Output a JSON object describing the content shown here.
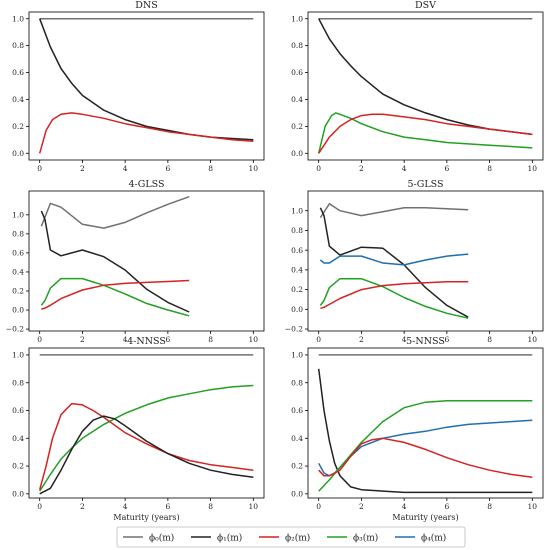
{
  "legend": [
    {
      "label": "ϕ₀(m)",
      "color": "#707070"
    },
    {
      "label": "ϕ₁(m)",
      "color": "#222222"
    },
    {
      "label": "ϕ₂(m)",
      "color": "#d62222"
    },
    {
      "label": "ϕ₃(m)",
      "color": "#22a022"
    },
    {
      "label": "ϕ₄(m)",
      "color": "#1f6fb0"
    }
  ],
  "chart_data": [
    {
      "type": "line",
      "title": "DNS",
      "xlabel": "",
      "xlim": [
        -0.5,
        10.5
      ],
      "ylim": [
        -0.05,
        1.05
      ],
      "xticks": [
        0,
        2,
        4,
        6,
        8,
        10
      ],
      "yticks": [
        0.0,
        0.2,
        0.4,
        0.6,
        0.8,
        1.0
      ],
      "series": [
        {
          "color": "#707070",
          "x": [
            0,
            10
          ],
          "y": [
            1.0,
            1.0
          ]
        },
        {
          "color": "#222222",
          "x": [
            0,
            0.5,
            1,
            1.5,
            2,
            3,
            4,
            5,
            6,
            7,
            8,
            9,
            10
          ],
          "y": [
            1.0,
            0.79,
            0.63,
            0.52,
            0.43,
            0.32,
            0.25,
            0.2,
            0.17,
            0.14,
            0.12,
            0.11,
            0.1
          ]
        },
        {
          "color": "#d62222",
          "x": [
            0,
            0.3,
            0.6,
            1,
            1.5,
            2,
            3,
            4,
            5,
            6,
            7,
            8,
            9,
            10
          ],
          "y": [
            0.0,
            0.17,
            0.25,
            0.29,
            0.3,
            0.29,
            0.26,
            0.22,
            0.19,
            0.16,
            0.14,
            0.12,
            0.1,
            0.09
          ]
        }
      ]
    },
    {
      "type": "line",
      "title": "DSV",
      "xlabel": "",
      "xlim": [
        -0.5,
        10.5
      ],
      "ylim": [
        -0.05,
        1.05
      ],
      "xticks": [
        0,
        2,
        4,
        6,
        8,
        10
      ],
      "yticks": [
        0.0,
        0.2,
        0.4,
        0.6,
        0.8,
        1.0
      ],
      "series": [
        {
          "color": "#707070",
          "x": [
            0,
            10
          ],
          "y": [
            1.0,
            1.0
          ]
        },
        {
          "color": "#222222",
          "x": [
            0,
            0.5,
            1,
            1.5,
            2,
            3,
            4,
            5,
            6,
            7,
            8,
            9,
            10
          ],
          "y": [
            1.0,
            0.85,
            0.74,
            0.65,
            0.57,
            0.44,
            0.36,
            0.3,
            0.25,
            0.21,
            0.18,
            0.16,
            0.14
          ]
        },
        {
          "color": "#22a022",
          "x": [
            0,
            0.3,
            0.6,
            0.8,
            1,
            1.5,
            2,
            3,
            4,
            5,
            6,
            7,
            8,
            9,
            10
          ],
          "y": [
            0.0,
            0.2,
            0.28,
            0.3,
            0.29,
            0.26,
            0.22,
            0.16,
            0.12,
            0.1,
            0.08,
            0.07,
            0.06,
            0.05,
            0.04
          ]
        },
        {
          "color": "#d62222",
          "x": [
            0,
            0.5,
            1,
            1.5,
            2,
            2.5,
            3,
            4,
            5,
            6,
            7,
            8,
            9,
            10
          ],
          "y": [
            0.0,
            0.12,
            0.2,
            0.25,
            0.28,
            0.29,
            0.29,
            0.27,
            0.25,
            0.22,
            0.2,
            0.18,
            0.16,
            0.14
          ]
        }
      ]
    },
    {
      "type": "line",
      "title": "4-GLSS",
      "xlabel": "",
      "xlim": [
        -0.5,
        10.5
      ],
      "ylim": [
        -0.22,
        1.25
      ],
      "xticks": [
        0,
        2,
        4,
        6,
        8,
        10
      ],
      "yticks": [
        -0.2,
        0.0,
        0.2,
        0.4,
        0.6,
        0.8,
        1.0
      ],
      "series": [
        {
          "color": "#707070",
          "x": [
            0.08,
            0.5,
            1,
            2,
            3,
            4,
            5,
            6,
            7
          ],
          "y": [
            0.88,
            1.12,
            1.08,
            0.9,
            0.86,
            0.92,
            1.02,
            1.11,
            1.19
          ]
        },
        {
          "color": "#222222",
          "x": [
            0.08,
            0.25,
            0.5,
            1,
            2,
            3,
            4,
            5,
            6,
            7
          ],
          "y": [
            1.04,
            0.95,
            0.63,
            0.57,
            0.63,
            0.56,
            0.42,
            0.22,
            0.08,
            -0.02
          ]
        },
        {
          "color": "#22a022",
          "x": [
            0.08,
            0.25,
            0.5,
            1,
            2,
            3,
            4,
            5,
            6,
            7
          ],
          "y": [
            0.05,
            0.1,
            0.23,
            0.33,
            0.33,
            0.26,
            0.17,
            0.07,
            0.0,
            -0.06
          ]
        },
        {
          "color": "#d62222",
          "x": [
            0.08,
            0.25,
            0.5,
            1,
            2,
            3,
            4,
            5,
            6,
            7
          ],
          "y": [
            0.01,
            0.02,
            0.05,
            0.12,
            0.21,
            0.26,
            0.28,
            0.29,
            0.3,
            0.31
          ]
        }
      ]
    },
    {
      "type": "line",
      "title": "5-GLSS",
      "xlabel": "",
      "xlim": [
        -0.5,
        10.5
      ],
      "ylim": [
        -0.22,
        1.2
      ],
      "xticks": [
        0,
        2,
        4,
        6,
        8,
        10
      ],
      "yticks": [
        -0.2,
        0.0,
        0.2,
        0.4,
        0.6,
        0.8,
        1.0
      ],
      "series": [
        {
          "color": "#707070",
          "x": [
            0.08,
            0.5,
            1,
            2,
            3,
            4,
            5,
            6,
            7
          ],
          "y": [
            0.93,
            1.07,
            1.0,
            0.95,
            0.99,
            1.03,
            1.03,
            1.02,
            1.01
          ]
        },
        {
          "color": "#222222",
          "x": [
            0.08,
            0.25,
            0.5,
            1,
            2,
            3,
            4,
            5,
            6,
            7
          ],
          "y": [
            1.03,
            0.95,
            0.64,
            0.55,
            0.63,
            0.62,
            0.45,
            0.22,
            0.04,
            -0.08
          ]
        },
        {
          "color": "#1f6fb0",
          "x": [
            0.08,
            0.25,
            0.5,
            1,
            2,
            3,
            4,
            5,
            6,
            7
          ],
          "y": [
            0.5,
            0.47,
            0.47,
            0.54,
            0.54,
            0.47,
            0.45,
            0.5,
            0.54,
            0.56
          ]
        },
        {
          "color": "#22a022",
          "x": [
            0.08,
            0.25,
            0.5,
            1,
            2,
            3,
            4,
            5,
            6,
            7
          ],
          "y": [
            0.04,
            0.09,
            0.22,
            0.31,
            0.31,
            0.23,
            0.12,
            0.03,
            -0.04,
            -0.09
          ]
        },
        {
          "color": "#d62222",
          "x": [
            0.08,
            0.25,
            0.5,
            1,
            2,
            3,
            4,
            5,
            6,
            7
          ],
          "y": [
            0.01,
            0.02,
            0.05,
            0.11,
            0.2,
            0.24,
            0.26,
            0.27,
            0.28,
            0.28
          ]
        }
      ]
    },
    {
      "type": "line",
      "title": "4-NNSS",
      "xlabel": "Maturity (years)",
      "xlim": [
        -0.5,
        10.5
      ],
      "ylim": [
        -0.03,
        1.05
      ],
      "xticks": [
        0,
        2,
        4,
        6,
        8,
        10
      ],
      "yticks": [
        0.0,
        0.2,
        0.4,
        0.6,
        0.8,
        1.0
      ],
      "series": [
        {
          "color": "#707070",
          "x": [
            0,
            10
          ],
          "y": [
            1.0,
            1.0
          ]
        },
        {
          "color": "#22a022",
          "x": [
            0,
            0.5,
            1,
            1.5,
            2,
            3,
            4,
            5,
            6,
            7,
            8,
            9,
            10
          ],
          "y": [
            0.02,
            0.14,
            0.25,
            0.33,
            0.4,
            0.5,
            0.58,
            0.64,
            0.69,
            0.72,
            0.75,
            0.77,
            0.78
          ]
        },
        {
          "color": "#d62222",
          "x": [
            0,
            0.3,
            0.6,
            1,
            1.5,
            2,
            2.5,
            3,
            4,
            5,
            6,
            7,
            8,
            9,
            10
          ],
          "y": [
            0.03,
            0.2,
            0.4,
            0.57,
            0.65,
            0.64,
            0.6,
            0.55,
            0.44,
            0.36,
            0.29,
            0.24,
            0.21,
            0.19,
            0.17
          ]
        },
        {
          "color": "#222222",
          "x": [
            0,
            0.5,
            1,
            1.5,
            2,
            2.5,
            3,
            3.5,
            4,
            5,
            6,
            7,
            8,
            9,
            10
          ],
          "y": [
            0.0,
            0.04,
            0.17,
            0.32,
            0.45,
            0.53,
            0.56,
            0.54,
            0.49,
            0.38,
            0.29,
            0.22,
            0.17,
            0.14,
            0.12
          ]
        }
      ]
    },
    {
      "type": "line",
      "title": "5-NNSS",
      "xlabel": "Maturity (years)",
      "xlim": [
        -0.5,
        10.5
      ],
      "ylim": [
        -0.03,
        1.05
      ],
      "xticks": [
        0,
        2,
        4,
        6,
        8,
        10
      ],
      "yticks": [
        0.0,
        0.2,
        0.4,
        0.6,
        0.8,
        1.0
      ],
      "series": [
        {
          "color": "#707070",
          "x": [
            0,
            10
          ],
          "y": [
            1.0,
            1.0
          ]
        },
        {
          "color": "#222222",
          "x": [
            0,
            0.25,
            0.5,
            0.75,
            1,
            1.5,
            2,
            3,
            4,
            6,
            8,
            10
          ],
          "y": [
            0.9,
            0.6,
            0.38,
            0.22,
            0.13,
            0.05,
            0.03,
            0.02,
            0.01,
            0.01,
            0.01,
            0.01
          ]
        },
        {
          "color": "#1f6fb0",
          "x": [
            0,
            0.25,
            0.5,
            0.75,
            1,
            1.5,
            2,
            3,
            4,
            5,
            6,
            7,
            8,
            9,
            10
          ],
          "y": [
            0.22,
            0.15,
            0.13,
            0.15,
            0.19,
            0.27,
            0.34,
            0.4,
            0.43,
            0.45,
            0.48,
            0.5,
            0.51,
            0.52,
            0.53
          ]
        },
        {
          "color": "#22a022",
          "x": [
            0,
            0.5,
            1,
            1.5,
            2,
            3,
            4,
            5,
            6,
            7,
            8,
            9,
            10
          ],
          "y": [
            0.02,
            0.1,
            0.19,
            0.28,
            0.37,
            0.52,
            0.62,
            0.66,
            0.67,
            0.67,
            0.67,
            0.67,
            0.67
          ]
        },
        {
          "color": "#d62222",
          "x": [
            0,
            0.25,
            0.5,
            1,
            1.5,
            2,
            2.5,
            3,
            4,
            5,
            6,
            7,
            8,
            9,
            10
          ],
          "y": [
            0.17,
            0.13,
            0.13,
            0.17,
            0.27,
            0.36,
            0.39,
            0.4,
            0.37,
            0.32,
            0.26,
            0.21,
            0.17,
            0.14,
            0.12
          ]
        }
      ]
    }
  ]
}
